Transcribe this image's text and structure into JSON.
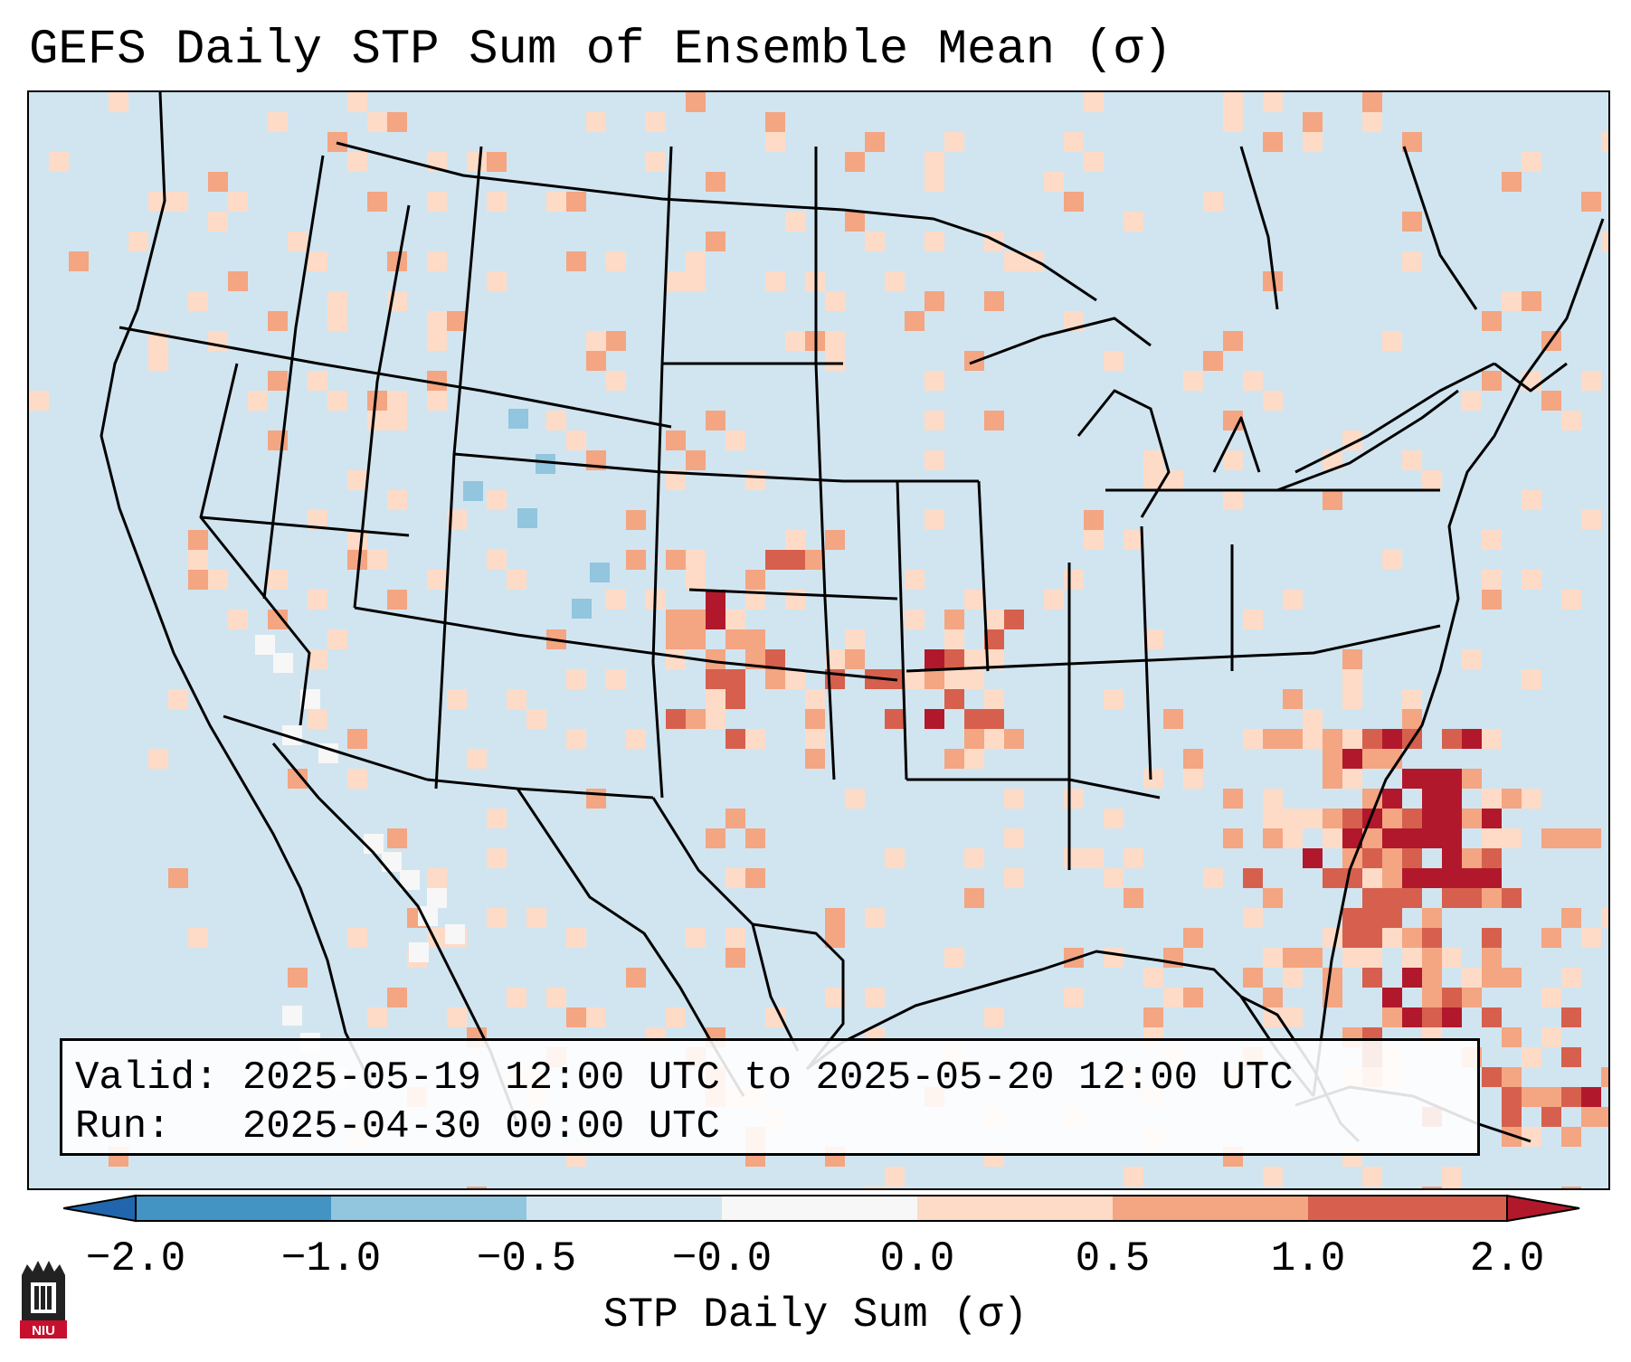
{
  "title": "GEFS Daily STP Sum of Ensemble Mean (σ)",
  "info": {
    "valid_label": "Valid:",
    "valid_value": "2025-05-19 12:00 UTC to 2025-05-20 12:00 UTC",
    "run_label": "Run:",
    "run_value": "2025-04-30 00:00 UTC"
  },
  "colorbar": {
    "label": "STP Daily Sum (σ)",
    "ticks": [
      "−2.0",
      "−1.0",
      "−0.5",
      "−0.0",
      "0.0",
      "0.5",
      "1.0",
      "2.0"
    ],
    "colors": [
      "#2166ac",
      "#4393c3",
      "#92c5de",
      "#d1e5f0",
      "#f7f7f7",
      "#fddbc7",
      "#f4a582",
      "#d6604d",
      "#b2182b"
    ]
  },
  "map": {
    "region": "CONUS",
    "ocean_color": "#d1e5f0",
    "border_color": "#000000"
  },
  "logo": {
    "icon": "niu-logo-icon",
    "text": "NIU"
  }
}
